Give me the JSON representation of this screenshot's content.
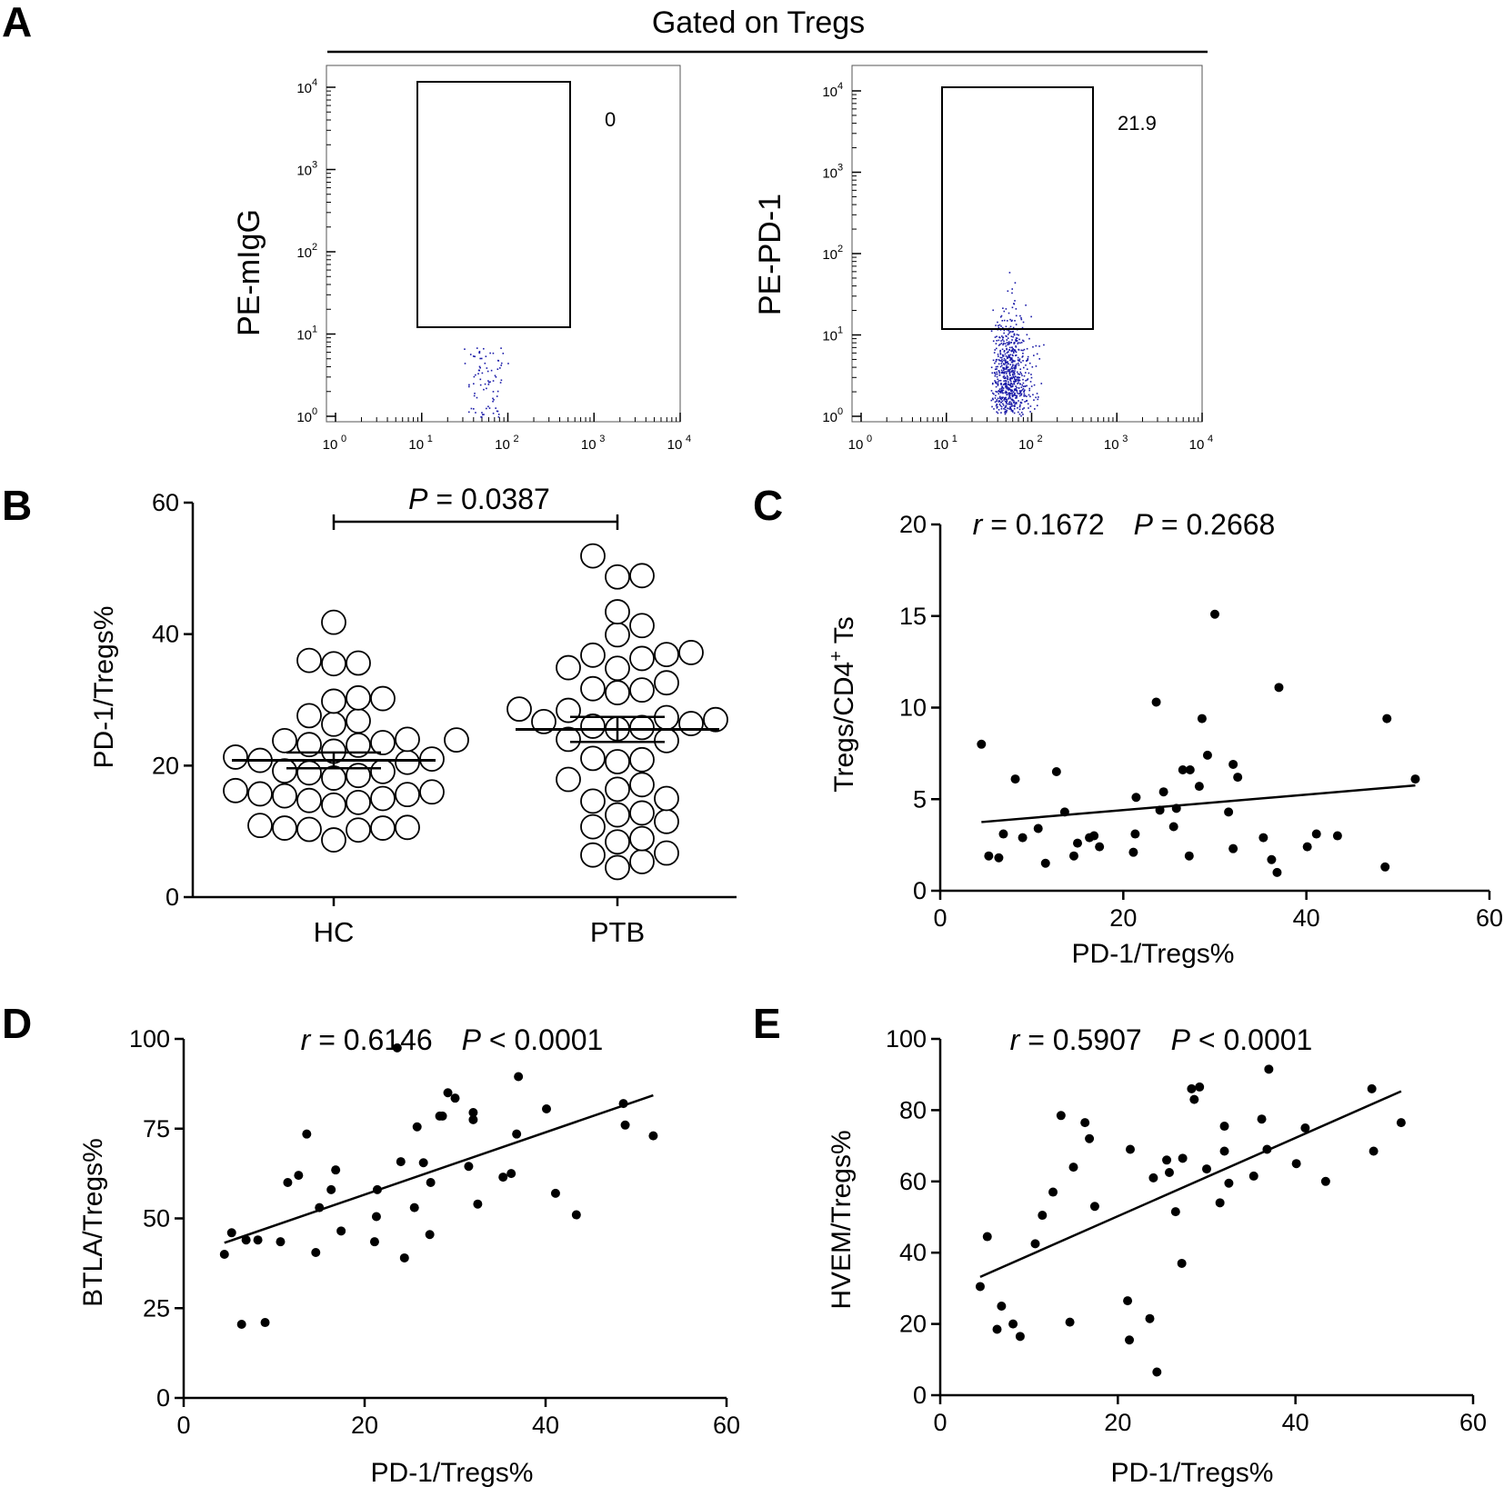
{
  "panel_labels": {
    "a": "A",
    "b": "B",
    "c": "C",
    "d": "D",
    "e": "E"
  },
  "panelA": {
    "header": "Gated on Tregs",
    "plots": [
      {
        "ylabel": "PE-mIgG",
        "gate_value": "0",
        "axis_ticks": [
          "10",
          "10",
          "10",
          "10",
          "10"
        ],
        "tick_exponents": [
          "0",
          "1",
          "2",
          "3",
          "4"
        ],
        "events": 80
      },
      {
        "ylabel": "PE-PD-1",
        "gate_value": "21.9",
        "axis_ticks": [
          "10",
          "10",
          "10",
          "10",
          "10"
        ],
        "tick_exponents": [
          "0",
          "1",
          "2",
          "3",
          "4"
        ],
        "events": 700
      }
    ],
    "colors": {
      "dots": "#1a1aa8",
      "frame": "#555555"
    }
  },
  "panelB": {
    "p_label": "P",
    "p_value": " = 0.0387",
    "ylabel": "PD-1/Tregs%"
  },
  "panelC": {
    "r_label": "r",
    "r_value": " = 0.1672",
    "p_label": "P",
    "p_value": " = 0.2668",
    "xlabel": "PD-1/Tregs%",
    "ylabel_main": "Tregs/CD4",
    "ylabel_sup": "+",
    "ylabel_end": " Ts"
  },
  "panelD": {
    "r_label": "r",
    "r_value": " = 0.6146",
    "p_label": "P",
    "p_value": " < 0.0001",
    "xlabel": "PD-1/Tregs%",
    "ylabel": "BTLA/Tregs%"
  },
  "panelE": {
    "r_label": "r",
    "r_value": " = 0.5907",
    "p_label": "P",
    "p_value": " < 0.0001",
    "xlabel": "PD-1/Tregs%",
    "ylabel": "HVEM/Tregs%"
  },
  "chart_data": [
    {
      "id": "B",
      "type": "scatter",
      "title": "",
      "xlabel": "",
      "ylabel": "PD-1/Tregs%",
      "ylim": [
        0,
        60
      ],
      "yticks": [
        0,
        20,
        40,
        60
      ],
      "categories": [
        "HC",
        "PTB"
      ],
      "series": [
        {
          "name": "HC",
          "values": [
            41.8,
            36.0,
            35.5,
            35.6,
            30.2,
            30.3,
            29.8,
            27.6,
            26.8,
            26.3,
            24.0,
            23.9,
            23.8,
            23.5,
            23.2,
            23.1,
            22.2,
            21.3,
            21.0,
            20.8,
            20.5,
            19.2,
            19.1,
            18.9,
            18.5,
            18.1,
            16.2,
            16.0,
            15.7,
            15.6,
            15.4,
            15.0,
            14.7,
            14.4,
            14.0,
            10.9,
            10.6,
            10.5,
            10.5,
            10.3,
            10.2,
            8.7
          ]
        },
        {
          "name": "PTB",
          "values": [
            51.9,
            48.9,
            48.7,
            43.4,
            41.3,
            39.9,
            37.2,
            36.9,
            36.8,
            36.3,
            34.9,
            34.8,
            32.6,
            31.7,
            31.5,
            31.1,
            28.6,
            28.4,
            27.3,
            27.0,
            26.7,
            26.4,
            26.0,
            25.8,
            25.6,
            24.0,
            23.8,
            21.1,
            20.9,
            20.6,
            17.9,
            17.1,
            16.4,
            15.0,
            14.6,
            12.8,
            12.5,
            11.5,
            10.7,
            8.9,
            8.4,
            6.7,
            6.4,
            5.4,
            4.5
          ]
        }
      ],
      "means": [
        20.8,
        25.5
      ],
      "sem_lower": [
        19.6,
        23.6
      ],
      "sem_upper": [
        22.0,
        27.4
      ],
      "annotation": "P = 0.0387"
    },
    {
      "id": "C",
      "type": "scatter",
      "xlabel": "PD-1/Tregs%",
      "ylabel": "Tregs/CD4+ Ts",
      "xlim": [
        0,
        60
      ],
      "ylim": [
        0,
        20
      ],
      "xticks": [
        0,
        20,
        40,
        60
      ],
      "yticks": [
        0,
        5,
        10,
        15,
        20
      ],
      "x": [
        4.5,
        5.3,
        6.4,
        6.9,
        8.2,
        9.0,
        10.7,
        11.5,
        12.7,
        13.6,
        14.6,
        15.0,
        16.3,
        16.8,
        17.4,
        21.1,
        21.3,
        21.4,
        23.6,
        24.0,
        24.4,
        25.5,
        25.8,
        26.5,
        27.2,
        27.3,
        28.3,
        28.6,
        29.2,
        30.0,
        31.5,
        32.0,
        32.0,
        32.5,
        35.3,
        36.2,
        36.8,
        37.0,
        40.1,
        41.1,
        43.4,
        48.6,
        48.8,
        51.9
      ],
      "y": [
        8.0,
        1.9,
        1.8,
        3.1,
        6.1,
        2.9,
        3.4,
        1.5,
        6.5,
        4.3,
        1.9,
        2.6,
        2.9,
        3.0,
        2.4,
        2.1,
        3.1,
        5.1,
        10.3,
        4.4,
        5.4,
        3.5,
        4.5,
        6.6,
        1.9,
        6.6,
        5.7,
        9.4,
        7.4,
        15.1,
        4.3,
        2.3,
        6.9,
        6.2,
        2.9,
        1.7,
        1.0,
        11.1,
        2.4,
        3.1,
        3.0,
        1.3,
        9.4,
        6.1
      ],
      "fit": {
        "x": [
          4.5,
          51.9
        ],
        "y": [
          3.75,
          5.75
        ]
      },
      "annotation": "r = 0.1672   P = 0.2668"
    },
    {
      "id": "D",
      "type": "scatter",
      "xlabel": "PD-1/Tregs%",
      "ylabel": "BTLA/Tregs%",
      "xlim": [
        0,
        60
      ],
      "ylim": [
        0,
        100
      ],
      "xticks": [
        0,
        20,
        40,
        60
      ],
      "yticks": [
        0,
        25,
        50,
        75,
        100
      ],
      "x": [
        4.5,
        5.3,
        6.4,
        6.9,
        8.2,
        9.0,
        10.7,
        11.5,
        12.7,
        13.6,
        14.6,
        15.0,
        16.3,
        16.8,
        17.4,
        21.1,
        21.3,
        21.4,
        23.6,
        24.0,
        24.4,
        25.5,
        25.8,
        26.5,
        27.2,
        27.3,
        28.3,
        28.6,
        29.2,
        30.0,
        31.5,
        32.0,
        32.0,
        32.5,
        35.3,
        36.2,
        36.8,
        37.0,
        40.1,
        41.1,
        43.4,
        48.6,
        48.8,
        51.9
      ],
      "y": [
        40.0,
        46.0,
        20.5,
        44.0,
        44.0,
        21.0,
        43.5,
        60.0,
        62.0,
        73.5,
        40.5,
        53.0,
        58.0,
        63.5,
        46.5,
        43.5,
        50.5,
        58.0,
        97.5,
        65.8,
        39.0,
        53.0,
        75.5,
        65.5,
        45.5,
        60.0,
        78.5,
        78.5,
        85.0,
        83.5,
        64.5,
        79.5,
        77.5,
        54.0,
        61.5,
        62.5,
        73.5,
        89.5,
        80.5,
        57.0,
        51.0,
        82.0,
        76.0,
        73.0
      ],
      "fit": {
        "x": [
          4.5,
          51.9
        ],
        "y": [
          43.2,
          84.3
        ]
      },
      "annotation": "r = 0.6146   P < 0.0001"
    },
    {
      "id": "E",
      "type": "scatter",
      "xlabel": "PD-1/Tregs%",
      "ylabel": "HVEM/Tregs%",
      "xlim": [
        0,
        60
      ],
      "ylim": [
        0,
        100
      ],
      "xticks": [
        0,
        20,
        40,
        60
      ],
      "yticks": [
        0,
        20,
        40,
        60,
        80,
        100
      ],
      "x": [
        4.5,
        5.3,
        6.4,
        6.9,
        8.2,
        9.0,
        10.7,
        11.5,
        12.7,
        13.6,
        14.6,
        15.0,
        16.3,
        16.8,
        17.4,
        21.1,
        21.3,
        21.4,
        23.6,
        24.0,
        24.4,
        25.5,
        25.8,
        26.5,
        27.2,
        27.3,
        28.3,
        28.6,
        29.2,
        30.0,
        31.5,
        32.0,
        32.0,
        32.5,
        35.3,
        36.2,
        36.8,
        37.0,
        40.1,
        41.1,
        43.4,
        48.6,
        48.8,
        51.9
      ],
      "y": [
        30.5,
        44.5,
        18.5,
        25.0,
        20.0,
        16.5,
        42.5,
        50.5,
        57.0,
        78.5,
        20.5,
        64.0,
        76.5,
        72.0,
        53.0,
        26.5,
        15.5,
        69.0,
        21.5,
        61.0,
        6.5,
        66.0,
        62.5,
        51.5,
        37.0,
        66.5,
        86.0,
        83.0,
        86.5,
        63.5,
        54.0,
        68.5,
        75.5,
        59.5,
        61.5,
        77.5,
        69.0,
        91.5,
        65.0,
        75.0,
        60.0,
        86.0,
        68.5,
        76.5
      ],
      "fit": {
        "x": [
          4.5,
          51.9
        ],
        "y": [
          33.2,
          85.3
        ]
      },
      "annotation": "r = 0.5907   P < 0.0001"
    }
  ]
}
